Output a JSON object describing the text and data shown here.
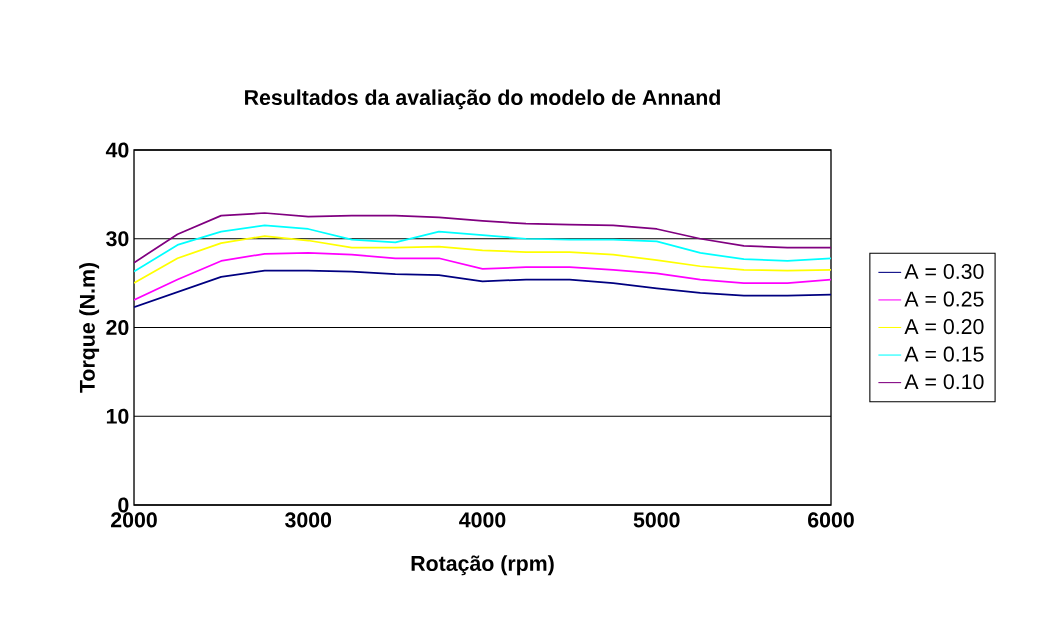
{
  "chart_data": {
    "type": "line",
    "title": "Resultados da avaliação do modelo de Annand",
    "xlabel": "Rotação (rpm)",
    "ylabel": "Torque (N.m)",
    "x": [
      2000,
      2250,
      2500,
      2750,
      3000,
      3250,
      3500,
      3750,
      4000,
      4250,
      4500,
      4750,
      5000,
      5250,
      5500,
      5750,
      6000
    ],
    "series": [
      {
        "name": "A = 0.30",
        "color": "#000080",
        "values": [
          22.3,
          24.0,
          25.7,
          26.4,
          26.4,
          26.3,
          26.0,
          25.9,
          25.2,
          25.4,
          25.4,
          25.0,
          24.4,
          23.9,
          23.6,
          23.6,
          23.7
        ]
      },
      {
        "name": "A = 0.25",
        "color": "#ff00ff",
        "values": [
          23.1,
          25.4,
          27.5,
          28.3,
          28.4,
          28.2,
          27.8,
          27.8,
          26.6,
          26.8,
          26.8,
          26.5,
          26.1,
          25.4,
          25.0,
          25.0,
          25.4
        ]
      },
      {
        "name": "A = 0.20",
        "color": "#ffff00",
        "values": [
          25.0,
          27.8,
          29.5,
          30.3,
          29.8,
          29.0,
          29.0,
          29.1,
          28.7,
          28.5,
          28.5,
          28.2,
          27.6,
          26.9,
          26.5,
          26.4,
          26.5
        ]
      },
      {
        "name": "A = 0.15",
        "color": "#00ffff",
        "values": [
          26.3,
          29.3,
          30.8,
          31.5,
          31.1,
          29.9,
          29.6,
          30.8,
          30.4,
          30.0,
          29.9,
          29.9,
          29.7,
          28.4,
          27.7,
          27.5,
          27.8
        ]
      },
      {
        "name": "A = 0.10",
        "color": "#800080",
        "values": [
          27.3,
          30.5,
          32.6,
          32.9,
          32.5,
          32.6,
          32.6,
          32.4,
          32.0,
          31.7,
          31.6,
          31.5,
          31.1,
          30.0,
          29.2,
          29.0,
          29.0
        ]
      }
    ],
    "xlim": [
      2000,
      6000
    ],
    "ylim": [
      0,
      40
    ],
    "xticks": [
      2000,
      3000,
      4000,
      5000,
      6000
    ],
    "yticks": [
      0,
      10,
      20,
      30,
      40
    ],
    "grid": "y",
    "legend": "right",
    "marker": "none",
    "line_style": "solid"
  }
}
